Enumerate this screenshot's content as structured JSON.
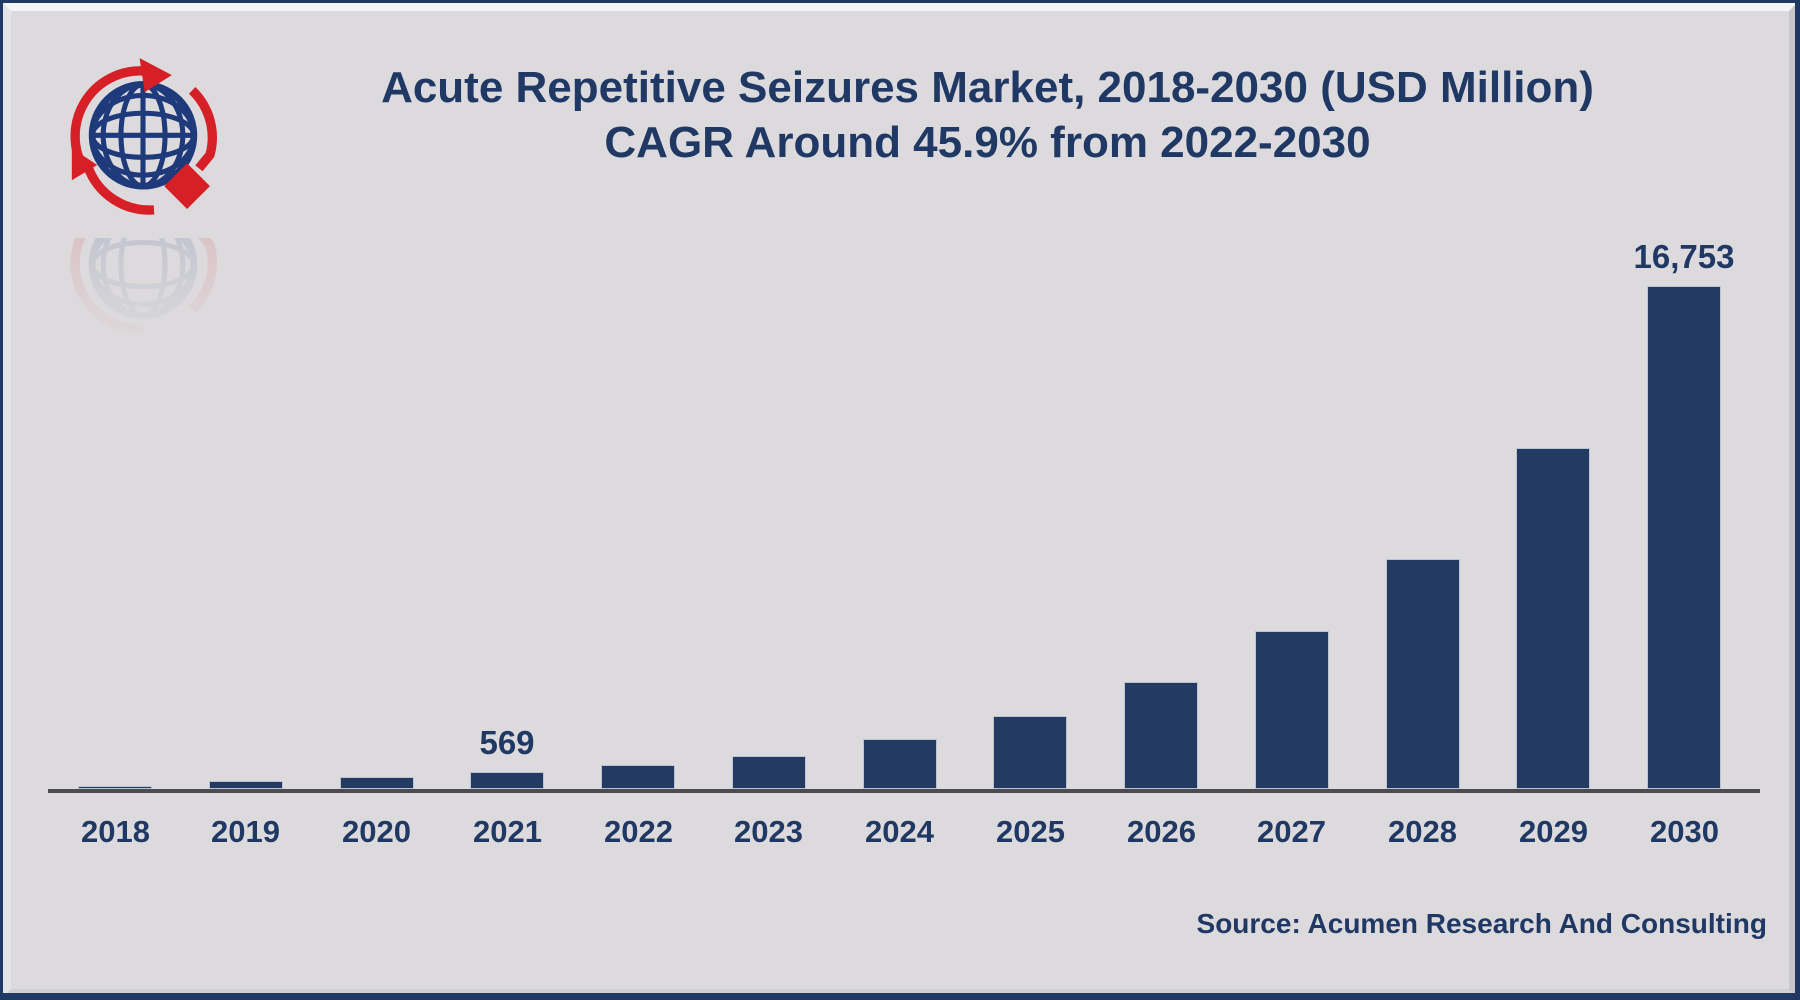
{
  "header": {
    "title_line1": "Acute Repetitive Seizures Market, 2018-2030 (USD Million)",
    "title_line2": "CAGR Around 45.9% from 2022-2030"
  },
  "logo": {
    "name": "acumen-globe-logo",
    "globe_color": "#1e3a7b",
    "accent_color": "#d61f26"
  },
  "footer": {
    "source_label": "Source: Acumen Research And Consulting"
  },
  "colors": {
    "background": "#dcdadc",
    "bar": "#233a63",
    "bar_outline": "#b9c3d2",
    "text": "#1f3864",
    "axis_line": "#4c4c50",
    "frame": "#1f3864"
  },
  "chart_data": {
    "type": "bar",
    "title": "Acute Repetitive Seizures Market, 2018-2030 (USD Million)",
    "subtitle": "CAGR Around 45.9% from 2022-2030",
    "unit": "USD Million",
    "categories": [
      "2018",
      "2019",
      "2020",
      "2021",
      "2022",
      "2023",
      "2024",
      "2025",
      "2026",
      "2027",
      "2028",
      "2029",
      "2030"
    ],
    "values": [
      100,
      270,
      400,
      569,
      790,
      1100,
      1670,
      2430,
      3560,
      5260,
      7660,
      11360,
      16753
    ],
    "data_labels": {
      "2021": "569",
      "2030": "16,753"
    },
    "ylim": [
      0,
      17500
    ],
    "grid": false,
    "legend": false,
    "xlabel": "",
    "ylabel": "",
    "source": "Source: Acumen Research And Consulting"
  }
}
